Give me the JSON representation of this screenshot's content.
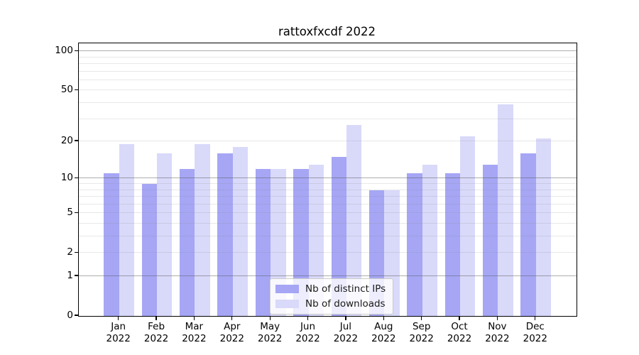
{
  "chart_data": {
    "type": "bar",
    "title": "rattoxfxcdf 2022",
    "year": "2022",
    "categories": [
      "Jan",
      "Feb",
      "Mar",
      "Apr",
      "May",
      "Jun",
      "Jul",
      "Aug",
      "Sep",
      "Oct",
      "Nov",
      "Dec"
    ],
    "series": [
      {
        "name": "Nb of distinct IPs",
        "key": "distinct-ips",
        "color": "#a6a6f5",
        "values": [
          11,
          9,
          12,
          16,
          12,
          12,
          15,
          8,
          11,
          11,
          13,
          16
        ]
      },
      {
        "name": "Nb of downloads",
        "key": "downloads",
        "color": "#d9d9fa",
        "values": [
          19,
          16,
          19,
          18,
          12,
          13,
          27,
          8,
          13,
          22,
          39,
          21
        ]
      }
    ],
    "y_axis": {
      "scale": "log1p",
      "ticks": [
        100,
        50,
        20,
        10,
        5,
        2,
        1,
        0
      ],
      "range": [
        0,
        112
      ],
      "grid": true,
      "major_gridlines": [
        1,
        10,
        100
      ],
      "minor_gridlines": [
        2,
        3,
        4,
        5,
        6,
        7,
        8,
        9,
        20,
        30,
        40,
        50,
        60,
        70,
        80,
        90
      ]
    },
    "legend": {
      "position": "lower center"
    },
    "colors": {
      "bar_distinct_ips": "#a6a6f5",
      "bar_downloads": "#d9d9fa",
      "grid_major": "#aaaaaa",
      "grid_minor": "#e8e8e8",
      "axis": "#000000",
      "background": "#ffffff",
      "text": "#000000"
    }
  }
}
